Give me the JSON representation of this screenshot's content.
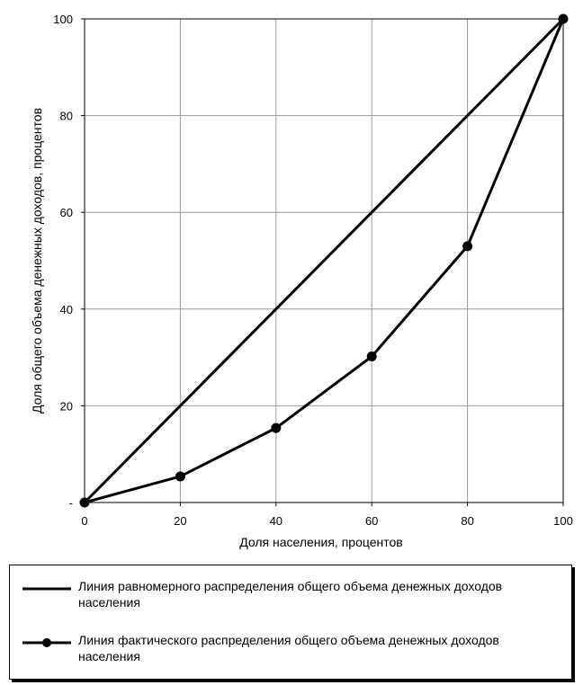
{
  "chart_data": {
    "type": "line",
    "xlabel": "Доля населения, процентов",
    "ylabel": "Доля общего объема денежных доходов, процентов",
    "xlim": [
      0,
      100
    ],
    "ylim": [
      0,
      100
    ],
    "x_ticks": [
      "0",
      "20",
      "40",
      "60",
      "80",
      "100"
    ],
    "y_ticks": [
      "-",
      "20",
      "40",
      "60",
      "80",
      "100"
    ],
    "grid": true,
    "series": [
      {
        "name": "Линия равномерного распределения общего объема денежных доходов населения",
        "marker": "none",
        "x": [
          0,
          100
        ],
        "y": [
          0,
          100
        ]
      },
      {
        "name": "Линия фактического распределения общего объема денежных доходов населения",
        "marker": "circle",
        "x": [
          0,
          20,
          40,
          60,
          80,
          100
        ],
        "y": [
          0,
          5.4,
          15.4,
          30.2,
          53,
          100
        ]
      }
    ],
    "legend_position": "bottom"
  }
}
